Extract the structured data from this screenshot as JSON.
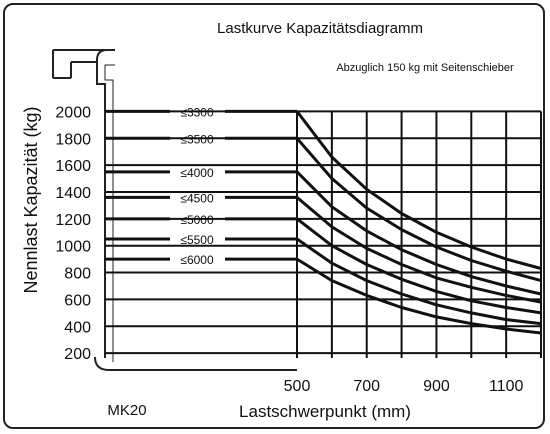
{
  "chart_data": {
    "type": "line",
    "title": "Lastkurve Kapazitätsdiagramm",
    "note": "Abzuglich 150 kg mit Seitenschieber",
    "model": "MK20",
    "xlabel": "Lastschwerpunkt (mm)",
    "ylabel": "Nennlast Kapazität (kg)",
    "xlim": [
      500,
      1200
    ],
    "ylim": [
      0,
      2000
    ],
    "x_ticks": [
      "500",
      "700",
      "900",
      "1100"
    ],
    "y_ticks": [
      "200",
      "400",
      "600",
      "800",
      "1000",
      "1200",
      "1400",
      "1600",
      "1800",
      "2000"
    ],
    "grid": true,
    "x": [
      500,
      600,
      700,
      800,
      900,
      1000,
      1100,
      1200
    ],
    "series": [
      {
        "name": "≤3300",
        "values": [
          2000,
          1660,
          1420,
          1240,
          1100,
          990,
          900,
          830
        ]
      },
      {
        "name": "≤3500",
        "values": [
          1800,
          1500,
          1280,
          1120,
          990,
          890,
          810,
          740
        ]
      },
      {
        "name": "≤4000",
        "values": [
          1550,
          1290,
          1110,
          970,
          860,
          770,
          700,
          640
        ]
      },
      {
        "name": "≤4500",
        "values": [
          1360,
          1140,
          980,
          860,
          760,
          690,
          630,
          580
        ]
      },
      {
        "name": "≤5000",
        "values": [
          1200,
          1000,
          860,
          750,
          660,
          590,
          540,
          500
        ]
      },
      {
        "name": "≤5500",
        "values": [
          1050,
          870,
          740,
          640,
          560,
          500,
          450,
          420
        ]
      },
      {
        "name": "≤6000",
        "values": [
          900,
          740,
          630,
          540,
          470,
          420,
          380,
          350
        ]
      }
    ]
  }
}
